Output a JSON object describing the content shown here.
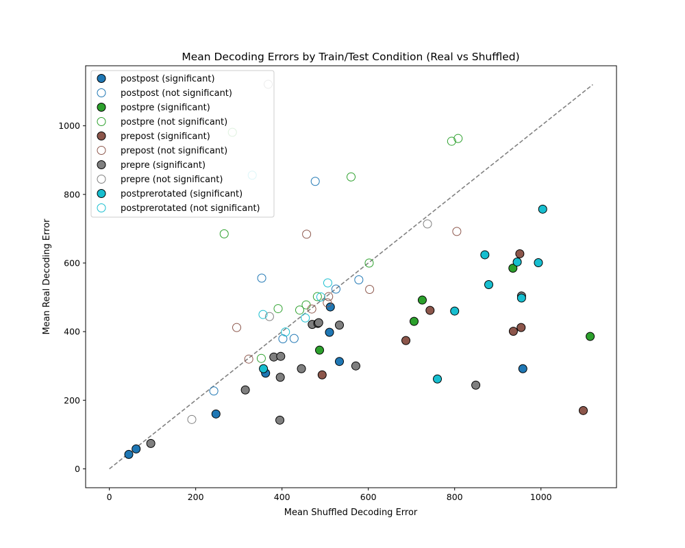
{
  "chart_data": {
    "type": "scatter",
    "title": "Mean Decoding Errors by Train/Test Condition (Real vs Shuffled)",
    "xlabel": "Mean Shuffled Decoding Error",
    "ylabel": "Mean Real Decoding Error",
    "xlim": [
      -55,
      1175
    ],
    "ylim": [
      -55,
      1175
    ],
    "xticks": [
      0,
      200,
      400,
      600,
      800,
      1000
    ],
    "yticks": [
      0,
      200,
      400,
      600,
      800,
      1000
    ],
    "grid": false,
    "legend_position": "top-left",
    "reference_line": {
      "style": "dashed",
      "color": "#808080",
      "from": [
        0,
        0
      ],
      "to": [
        1120,
        1120
      ]
    },
    "series": [
      {
        "name": "postpost (significant)",
        "color": "#1f77b4",
        "filled": true,
        "points": [
          [
            45,
            42
          ],
          [
            62,
            58
          ],
          [
            247,
            160
          ],
          [
            362,
            279
          ],
          [
            510,
            398
          ],
          [
            512,
            472
          ],
          [
            533,
            313
          ],
          [
            958,
            292
          ]
        ]
      },
      {
        "name": "postpost (not significant)",
        "color": "#1f77b4",
        "filled": false,
        "points": [
          [
            242,
            227
          ],
          [
            353,
            556
          ],
          [
            402,
            379
          ],
          [
            428,
            380
          ],
          [
            477,
            838
          ],
          [
            525,
            524
          ],
          [
            578,
            551
          ]
        ]
      },
      {
        "name": "postpre (significant)",
        "color": "#2ca02c",
        "filled": true,
        "points": [
          [
            487,
            346
          ],
          [
            706,
            430
          ],
          [
            725,
            492
          ],
          [
            935,
            585
          ],
          [
            1114,
            386
          ]
        ]
      },
      {
        "name": "postpre (not significant)",
        "color": "#2ca02c",
        "filled": false,
        "points": [
          [
            266,
            685
          ],
          [
            285,
            981
          ],
          [
            352,
            322
          ],
          [
            391,
            467
          ],
          [
            441,
            463
          ],
          [
            456,
            478
          ],
          [
            482,
            502
          ],
          [
            560,
            851
          ],
          [
            602,
            600
          ],
          [
            793,
            955
          ],
          [
            808,
            963
          ]
        ]
      },
      {
        "name": "prepost (significant)",
        "color": "#8c564b",
        "filled": true,
        "points": [
          [
            493,
            274
          ],
          [
            687,
            374
          ],
          [
            743,
            462
          ],
          [
            936,
            401
          ],
          [
            951,
            627
          ],
          [
            954,
            412
          ],
          [
            1098,
            170
          ]
        ]
      },
      {
        "name": "prepost (not significant)",
        "color": "#8c564b",
        "filled": false,
        "points": [
          [
            295,
            412
          ],
          [
            323,
            320
          ],
          [
            457,
            684
          ],
          [
            469,
            466
          ],
          [
            505,
            484
          ],
          [
            508,
            502
          ],
          [
            603,
            523
          ],
          [
            805,
            692
          ]
        ]
      },
      {
        "name": "prepre (significant)",
        "color": "#7f7f7f",
        "filled": true,
        "points": [
          [
            96,
            74
          ],
          [
            315,
            230
          ],
          [
            381,
            326
          ],
          [
            395,
            142
          ],
          [
            396,
            267
          ],
          [
            397,
            328
          ],
          [
            445,
            292
          ],
          [
            470,
            421
          ],
          [
            483,
            424
          ],
          [
            485,
            426
          ],
          [
            533,
            419
          ],
          [
            571,
            300
          ],
          [
            849,
            244
          ],
          [
            955,
            504
          ]
        ]
      },
      {
        "name": "prepre (not significant)",
        "color": "#7f7f7f",
        "filled": false,
        "points": [
          [
            191,
            144
          ],
          [
            368,
            1121
          ],
          [
            371,
            444
          ],
          [
            737,
            714
          ]
        ]
      },
      {
        "name": "postprerotated (significant)",
        "color": "#17becf",
        "filled": true,
        "points": [
          [
            357,
            292
          ],
          [
            760,
            262
          ],
          [
            800,
            460
          ],
          [
            870,
            624
          ],
          [
            879,
            537
          ],
          [
            945,
            603
          ],
          [
            955,
            498
          ],
          [
            994,
            601
          ],
          [
            1004,
            757
          ]
        ]
      },
      {
        "name": "postprerotated (not significant)",
        "color": "#17becf",
        "filled": false,
        "points": [
          [
            331,
            856
          ],
          [
            356,
            450
          ],
          [
            408,
            399
          ],
          [
            454,
            440
          ],
          [
            490,
            501
          ],
          [
            506,
            542
          ]
        ]
      }
    ]
  }
}
